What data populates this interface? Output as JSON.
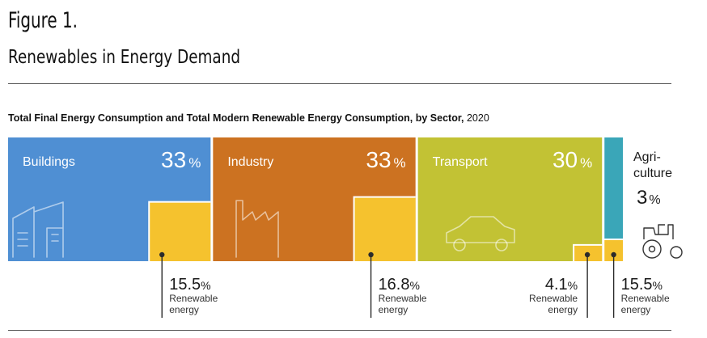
{
  "figure_label": "Figure 1.",
  "figure_title": "Renewables in Energy Demand",
  "chart_data": {
    "type": "area",
    "title": "Total Final Energy Consumption and Total Modern Renewable Energy Consumption, by Sector,",
    "year": "2020",
    "unit": "%",
    "renewable_label": "Renewable energy",
    "sectors": [
      {
        "name": "Buildings",
        "label": "Buildings",
        "share": 33,
        "renewable_share": 15.5,
        "color": "#4f8fd3",
        "renewable_color": "#f5c22e",
        "icon": "buildings-icon"
      },
      {
        "name": "Industry",
        "label": "Industry",
        "share": 33,
        "renewable_share": 16.8,
        "color": "#cc7221",
        "renewable_color": "#f5c22e",
        "icon": "factory-icon"
      },
      {
        "name": "Transport",
        "label": "Transport",
        "share": 30,
        "renewable_share": 4.1,
        "color": "#c2c234",
        "renewable_color": "#f5c22e",
        "icon": "car-icon"
      },
      {
        "name": "Agriculture",
        "label": "Agri-\nculture",
        "share": 3,
        "renewable_share": 15.5,
        "color": "#3aa6b8",
        "renewable_color": "#f5c22e",
        "icon": "tractor-icon"
      }
    ]
  }
}
